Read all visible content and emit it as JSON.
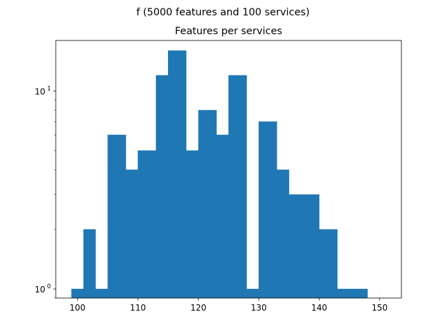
{
  "figure": {
    "suptitle": "f (5000 features and 100 services)"
  },
  "chart_data": {
    "type": "bar",
    "title": "Features per services",
    "xlabel": "",
    "ylabel": "",
    "yscale": "log",
    "xlim": [
      96.4,
      153.6
    ],
    "ylim": [
      0.9,
      18
    ],
    "grid": false,
    "color": "#1f77b4",
    "bins": [
      {
        "x0": 99.0,
        "x1": 101.0,
        "count": 1
      },
      {
        "x0": 101.0,
        "x1": 103.0,
        "count": 2
      },
      {
        "x0": 103.0,
        "x1": 105.0,
        "count": 1
      },
      {
        "x0": 105.0,
        "x1": 108.0,
        "count": 6
      },
      {
        "x0": 108.0,
        "x1": 110.0,
        "count": 4
      },
      {
        "x0": 110.0,
        "x1": 113.0,
        "count": 5
      },
      {
        "x0": 113.0,
        "x1": 115.0,
        "count": 12
      },
      {
        "x0": 115.0,
        "x1": 118.0,
        "count": 16
      },
      {
        "x0": 118.0,
        "x1": 120.0,
        "count": 5
      },
      {
        "x0": 120.0,
        "x1": 123.0,
        "count": 8
      },
      {
        "x0": 123.0,
        "x1": 125.0,
        "count": 6
      },
      {
        "x0": 125.0,
        "x1": 128.0,
        "count": 12
      },
      {
        "x0": 128.0,
        "x1": 130.0,
        "count": 1
      },
      {
        "x0": 130.0,
        "x1": 133.0,
        "count": 7
      },
      {
        "x0": 133.0,
        "x1": 135.0,
        "count": 4
      },
      {
        "x0": 135.0,
        "x1": 138.0,
        "count": 3
      },
      {
        "x0": 138.0,
        "x1": 140.0,
        "count": 3
      },
      {
        "x0": 140.0,
        "x1": 143.0,
        "count": 2
      },
      {
        "x0": 143.0,
        "x1": 145.0,
        "count": 1
      },
      {
        "x0": 145.0,
        "x1": 148.0,
        "count": 1
      }
    ],
    "x_ticks": [
      {
        "value": 100,
        "label": "100"
      },
      {
        "value": 110,
        "label": "110"
      },
      {
        "value": 120,
        "label": "120"
      },
      {
        "value": 130,
        "label": "130"
      },
      {
        "value": 140,
        "label": "140"
      },
      {
        "value": 150,
        "label": "150"
      }
    ],
    "y_ticks": [
      {
        "value": 1,
        "base": "10",
        "exp": "0"
      },
      {
        "value": 10,
        "base": "10",
        "exp": "1"
      }
    ]
  }
}
